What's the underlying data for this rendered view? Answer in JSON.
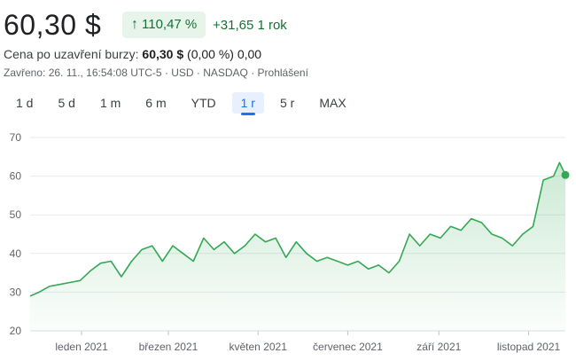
{
  "header": {
    "price": "60,30 $",
    "badge_arrow": "↑",
    "badge_pct": "110,47 %",
    "change": "+31,65 1 rok"
  },
  "after_hours": {
    "label": "Cena po uzavření burzy:",
    "price": "60,30 $",
    "pct": "(0,00 %)",
    "abs": "0,00"
  },
  "meta": "Zavřeno: 26. 11., 16:54:08 UTC-5 · USD · NASDAQ · Prohlášení",
  "ranges": [
    "1 d",
    "5 d",
    "1 m",
    "6 m",
    "YTD",
    "1 r",
    "5 r",
    "MAX"
  ],
  "active_range": "1 r",
  "colors": {
    "line": "#34a853",
    "fill": "#34a853",
    "accent": "#1a73e8",
    "positive": "#137333"
  },
  "chart_data": {
    "type": "area",
    "ylim": [
      20,
      70
    ],
    "yticks": [
      20,
      30,
      40,
      50,
      60,
      70
    ],
    "xtick_labels": [
      "leden 2021",
      "březen 2021",
      "květen 2021",
      "červenec 2021",
      "září 2021",
      "listopad 2021"
    ],
    "xtick_dates": [
      "2021-01-01",
      "2021-03-01",
      "2021-05-01",
      "2021-07-01",
      "2021-09-01",
      "2021-11-01"
    ],
    "x_range": [
      "2020-11-27",
      "2021-11-26"
    ],
    "grid": true,
    "last_point": {
      "date": "2021-11-26",
      "value": 60.3
    },
    "series": [
      {
        "x": [
          "2020-11-27",
          "2020-12-03",
          "2020-12-10",
          "2020-12-17",
          "2020-12-24",
          "2020-12-31",
          "2021-01-07",
          "2021-01-14",
          "2021-01-21",
          "2021-01-28",
          "2021-02-04",
          "2021-02-11",
          "2021-02-18",
          "2021-02-25",
          "2021-03-04",
          "2021-03-11",
          "2021-03-18",
          "2021-03-25",
          "2021-04-01",
          "2021-04-08",
          "2021-04-15",
          "2021-04-22",
          "2021-04-29",
          "2021-05-06",
          "2021-05-13",
          "2021-05-20",
          "2021-05-27",
          "2021-06-03",
          "2021-06-10",
          "2021-06-17",
          "2021-06-24",
          "2021-07-01",
          "2021-07-08",
          "2021-07-15",
          "2021-07-22",
          "2021-07-29",
          "2021-08-05",
          "2021-08-12",
          "2021-08-19",
          "2021-08-26",
          "2021-09-02",
          "2021-09-09",
          "2021-09-16",
          "2021-09-23",
          "2021-09-30",
          "2021-10-07",
          "2021-10-14",
          "2021-10-21",
          "2021-10-28",
          "2021-11-04",
          "2021-11-11",
          "2021-11-18",
          "2021-11-22",
          "2021-11-26"
        ],
        "values": [
          29,
          30,
          31.5,
          32,
          32.5,
          33,
          35.5,
          37.5,
          38,
          34,
          38,
          41,
          42,
          38,
          42,
          40,
          38,
          44,
          41,
          43,
          40,
          42,
          45,
          43,
          44,
          39,
          43,
          40,
          38,
          39,
          38,
          37,
          38,
          36,
          37,
          35,
          38,
          45,
          42,
          45,
          44,
          47,
          46,
          49,
          48,
          45,
          44,
          42,
          45,
          47,
          59,
          60,
          63.5,
          60.3
        ]
      }
    ]
  }
}
